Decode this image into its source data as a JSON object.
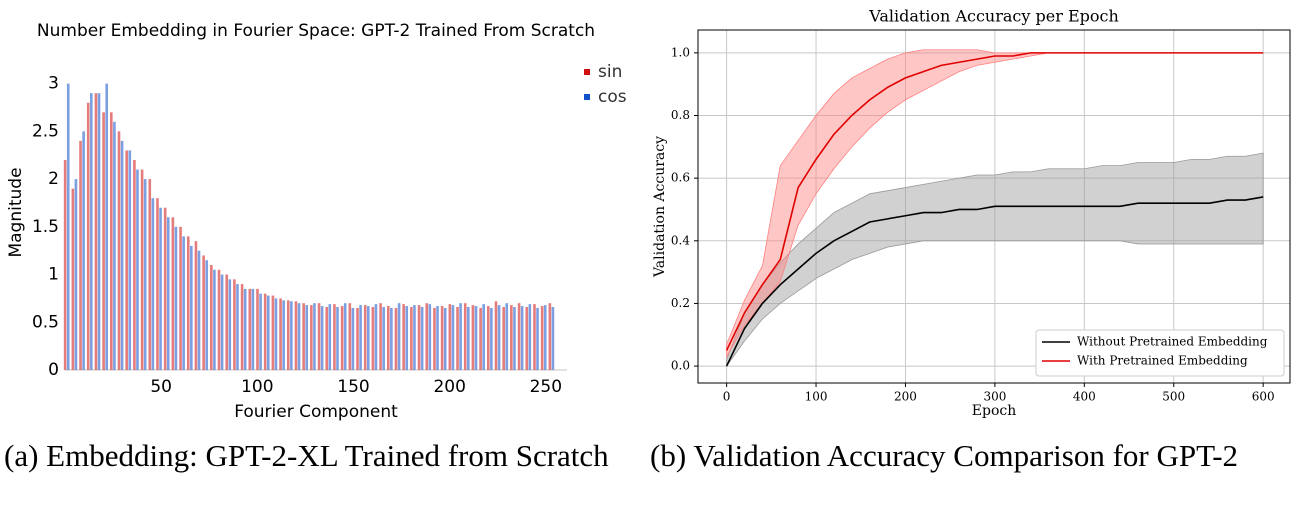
{
  "chart_data": [
    {
      "type": "bar",
      "title": "Number Embedding in Fourier Space: GPT-2 Trained From Scratch",
      "x_label": "Fourier Component",
      "y_label": "Magnitude",
      "x": [
        1,
        5,
        9,
        13,
        17,
        21,
        25,
        29,
        33,
        37,
        41,
        45,
        49,
        53,
        57,
        61,
        65,
        69,
        73,
        77,
        81,
        85,
        89,
        93,
        97,
        101,
        105,
        109,
        113,
        117,
        121,
        125,
        129,
        133,
        137,
        141,
        145,
        149,
        153,
        157,
        161,
        165,
        169,
        173,
        177,
        181,
        185,
        189,
        193,
        197,
        201,
        205,
        209,
        213,
        217,
        221,
        225,
        229,
        233,
        237,
        241,
        245,
        249,
        253
      ],
      "series": [
        {
          "name": "sin",
          "color": "#d01010",
          "values": [
            2.2,
            1.9,
            2.4,
            2.8,
            2.9,
            2.7,
            2.7,
            2.5,
            2.3,
            2.2,
            2.1,
            2.0,
            1.8,
            1.7,
            1.6,
            1.5,
            1.4,
            1.35,
            1.2,
            1.1,
            1.05,
            1.0,
            0.95,
            0.9,
            0.85,
            0.85,
            0.8,
            0.78,
            0.75,
            0.73,
            0.72,
            0.7,
            0.68,
            0.7,
            0.66,
            0.69,
            0.67,
            0.7,
            0.65,
            0.68,
            0.66,
            0.7,
            0.67,
            0.65,
            0.69,
            0.66,
            0.68,
            0.7,
            0.65,
            0.67,
            0.69,
            0.66,
            0.7,
            0.68,
            0.65,
            0.67,
            0.72,
            0.66,
            0.68,
            0.7,
            0.66,
            0.69,
            0.67,
            0.7
          ]
        },
        {
          "name": "cos",
          "color": "#1050c8",
          "values": [
            3.0,
            2.0,
            2.5,
            2.9,
            2.9,
            3.0,
            2.6,
            2.4,
            2.3,
            2.1,
            2.0,
            1.8,
            1.7,
            1.6,
            1.5,
            1.4,
            1.3,
            1.25,
            1.15,
            1.05,
            1.0,
            0.95,
            0.9,
            0.85,
            0.85,
            0.8,
            0.78,
            0.75,
            0.73,
            0.72,
            0.7,
            0.68,
            0.7,
            0.67,
            0.69,
            0.66,
            0.7,
            0.65,
            0.68,
            0.67,
            0.69,
            0.66,
            0.65,
            0.7,
            0.67,
            0.68,
            0.66,
            0.69,
            0.67,
            0.65,
            0.68,
            0.7,
            0.66,
            0.67,
            0.69,
            0.65,
            0.68,
            0.7,
            0.66,
            0.67,
            0.69,
            0.65,
            0.68,
            0.66
          ]
        }
      ],
      "xlim": [
        0,
        261
      ],
      "xticks": [
        50,
        100,
        150,
        200,
        250
      ],
      "ylim": [
        0,
        3.3
      ],
      "yticks": [
        0,
        0.5,
        1,
        1.5,
        2,
        2.5,
        3
      ],
      "legend": "top-right",
      "grid": false
    },
    {
      "type": "line",
      "title": "Validation Accuracy per Epoch",
      "x_label": "Epoch",
      "y_label": "Validation Accuracy",
      "x": [
        0,
        20,
        40,
        60,
        80,
        100,
        120,
        140,
        160,
        180,
        200,
        220,
        240,
        260,
        280,
        300,
        320,
        340,
        360,
        380,
        400,
        420,
        440,
        460,
        480,
        500,
        520,
        540,
        560,
        580,
        600
      ],
      "series": [
        {
          "name": "Without Pretrained Embedding",
          "color": "#000000",
          "band_color": "#9a9a9a",
          "values": [
            0.0,
            0.12,
            0.2,
            0.26,
            0.31,
            0.36,
            0.4,
            0.43,
            0.46,
            0.47,
            0.48,
            0.49,
            0.49,
            0.5,
            0.5,
            0.51,
            0.51,
            0.51,
            0.51,
            0.51,
            0.51,
            0.51,
            0.51,
            0.52,
            0.52,
            0.52,
            0.52,
            0.52,
            0.53,
            0.53,
            0.54
          ],
          "lower": [
            0.0,
            0.08,
            0.15,
            0.2,
            0.24,
            0.28,
            0.31,
            0.34,
            0.36,
            0.38,
            0.39,
            0.4,
            0.4,
            0.4,
            0.4,
            0.4,
            0.4,
            0.4,
            0.4,
            0.4,
            0.4,
            0.4,
            0.4,
            0.39,
            0.39,
            0.39,
            0.39,
            0.39,
            0.39,
            0.39,
            0.39
          ],
          "upper": [
            0.02,
            0.17,
            0.26,
            0.33,
            0.39,
            0.44,
            0.49,
            0.52,
            0.55,
            0.56,
            0.57,
            0.58,
            0.59,
            0.6,
            0.61,
            0.61,
            0.62,
            0.62,
            0.63,
            0.63,
            0.63,
            0.64,
            0.64,
            0.65,
            0.65,
            0.65,
            0.66,
            0.66,
            0.67,
            0.67,
            0.68
          ]
        },
        {
          "name": "With Pretrained Embedding",
          "color": "#e00000",
          "band_color": "#ff8080",
          "values": [
            0.05,
            0.17,
            0.26,
            0.34,
            0.57,
            0.66,
            0.74,
            0.8,
            0.85,
            0.89,
            0.92,
            0.94,
            0.96,
            0.97,
            0.98,
            0.99,
            0.99,
            1.0,
            1.0,
            1.0,
            1.0,
            1.0,
            1.0,
            1.0,
            1.0,
            1.0,
            1.0,
            1.0,
            1.0,
            1.0,
            1.0
          ],
          "lower": [
            0.03,
            0.13,
            0.2,
            0.27,
            0.45,
            0.55,
            0.63,
            0.7,
            0.76,
            0.81,
            0.85,
            0.88,
            0.91,
            0.94,
            0.96,
            0.97,
            0.98,
            0.99,
            1.0,
            1.0,
            1.0,
            1.0,
            1.0,
            1.0,
            1.0,
            1.0,
            1.0,
            1.0,
            1.0,
            1.0,
            1.0
          ],
          "upper": [
            0.07,
            0.21,
            0.32,
            0.64,
            0.72,
            0.8,
            0.87,
            0.92,
            0.95,
            0.98,
            1.0,
            1.01,
            1.01,
            1.01,
            1.01,
            1.0,
            1.0,
            1.0,
            1.0,
            1.0,
            1.0,
            1.0,
            1.0,
            1.0,
            1.0,
            1.0,
            1.0,
            1.0,
            1.0,
            1.0,
            1.0
          ]
        }
      ],
      "xlim": [
        -32,
        630
      ],
      "xticks": [
        0,
        100,
        200,
        300,
        400,
        500,
        600
      ],
      "ylim": [
        -0.054,
        1.073
      ],
      "yticks": [
        {
          "value": 0,
          "label": "0.0"
        },
        0.2,
        0.4,
        0.6,
        0.8,
        {
          "value": 1,
          "label": "1.0"
        }
      ],
      "legend": "lower-right",
      "grid": true
    }
  ],
  "captions": [
    "(a) Embedding: GPT-2-XL Trained from Scratch",
    "(b) Validation Accuracy Comparison for GPT-2"
  ]
}
